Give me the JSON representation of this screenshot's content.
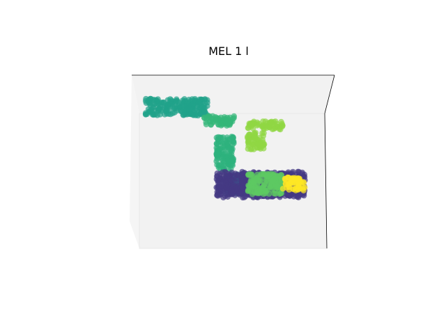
{
  "chart_data": {
    "type": "scatter",
    "projection": "3d",
    "title": "MEL 1 l",
    "axes_visible": false,
    "grid": false,
    "legend": "none",
    "colormap": "viridis",
    "clusters": [
      {
        "color": "#21a38a",
        "x": [
          -1.0,
          -0.3
        ],
        "y": [
          0.7,
          0.95
        ],
        "z": [
          0.0,
          0.05
        ]
      },
      {
        "color": "#35b779",
        "x": [
          -0.35,
          0.0
        ],
        "y": [
          0.55,
          0.7
        ],
        "z": [
          0.0,
          0.05
        ]
      },
      {
        "color": "#90d743",
        "x": [
          0.15,
          0.55
        ],
        "y": [
          0.5,
          0.62
        ],
        "z": [
          0.0,
          0.05
        ]
      },
      {
        "color": "#90d743",
        "x": [
          0.15,
          0.35
        ],
        "y": [
          0.2,
          0.45
        ],
        "z": [
          0.0,
          0.05
        ]
      },
      {
        "color": "#2db27d",
        "x": [
          -0.2,
          0.0
        ],
        "y": [
          -0.1,
          0.4
        ],
        "z": [
          0.0,
          0.05
        ]
      },
      {
        "color": "#31688e",
        "x": [
          -0.1,
          0.75
        ],
        "y": [
          -0.45,
          -0.15
        ],
        "z": [
          0.0,
          0.05
        ]
      },
      {
        "color": "#443983",
        "x": [
          -0.2,
          0.8
        ],
        "y": [
          -0.5,
          -0.12
        ],
        "z": [
          0.0,
          0.05
        ]
      },
      {
        "color": "#5ec962",
        "x": [
          0.15,
          0.55
        ],
        "y": [
          -0.45,
          -0.15
        ],
        "z": [
          0.0,
          0.05
        ]
      },
      {
        "color": "#fde725",
        "x": [
          0.55,
          0.8
        ],
        "y": [
          -0.4,
          -0.2
        ],
        "z": [
          0.0,
          0.05
        ]
      }
    ]
  }
}
